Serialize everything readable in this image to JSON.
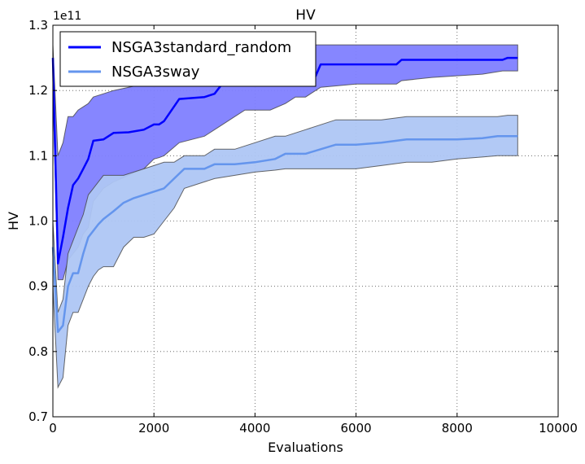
{
  "chart_data": {
    "type": "line",
    "title": "HV",
    "xlabel": "Evaluations",
    "ylabel": "HV",
    "y_offset_text": "1e11",
    "xlim": [
      0,
      10000
    ],
    "ylim": [
      0.7,
      1.3
    ],
    "grid": true,
    "legend_placement": "top-left",
    "x_ticks": [
      0,
      2000,
      4000,
      6000,
      8000,
      10000
    ],
    "x_tick_labels": [
      "0",
      "2000",
      "4000",
      "6000",
      "8000",
      "10000"
    ],
    "y_ticks": [
      0.7,
      0.8,
      0.9,
      1.0,
      1.1,
      1.2,
      1.3
    ],
    "y_tick_labels": [
      "0.7",
      "0.8",
      "0.9",
      "1.0",
      "1.1",
      "1.2",
      "1.3"
    ],
    "series": [
      {
        "name": "NSGA3standard_random",
        "color": "#0000ff",
        "band_color": "#7f7fff",
        "x": [
          0,
          100,
          200,
          300,
          400,
          500,
          600,
          700,
          800,
          1000,
          1200,
          1500,
          1800,
          2000,
          2100,
          2200,
          2500,
          3000,
          3200,
          3400,
          3600,
          3800,
          4000,
          4300,
          4600,
          4800,
          5000,
          5200,
          5300,
          6000,
          6800,
          6900,
          7500,
          8500,
          8900,
          9000,
          9200
        ],
        "mean": [
          1.25,
          0.935,
          0.975,
          1.02,
          1.055,
          1.065,
          1.08,
          1.095,
          1.123,
          1.125,
          1.135,
          1.136,
          1.14,
          1.148,
          1.148,
          1.153,
          1.187,
          1.19,
          1.195,
          1.215,
          1.215,
          1.215,
          1.215,
          1.215,
          1.215,
          1.215,
          1.215,
          1.222,
          1.24,
          1.24,
          1.24,
          1.247,
          1.247,
          1.247,
          1.247,
          1.25,
          1.25
        ],
        "upper": [
          1.27,
          1.1,
          1.12,
          1.16,
          1.16,
          1.17,
          1.175,
          1.18,
          1.19,
          1.195,
          1.2,
          1.205,
          1.21,
          1.22,
          1.22,
          1.22,
          1.23,
          1.24,
          1.25,
          1.25,
          1.25,
          1.25,
          1.25,
          1.25,
          1.26,
          1.27,
          1.27,
          1.27,
          1.27,
          1.27,
          1.27,
          1.27,
          1.27,
          1.27,
          1.27,
          1.27,
          1.27
        ],
        "lower": [
          1.2,
          0.91,
          0.91,
          0.94,
          0.95,
          0.96,
          0.98,
          0.99,
          1.03,
          1.05,
          1.06,
          1.07,
          1.08,
          1.095,
          1.097,
          1.1,
          1.12,
          1.13,
          1.14,
          1.15,
          1.16,
          1.17,
          1.17,
          1.17,
          1.18,
          1.19,
          1.19,
          1.2,
          1.205,
          1.21,
          1.21,
          1.215,
          1.22,
          1.225,
          1.23,
          1.23,
          1.23
        ]
      },
      {
        "name": "NSGA3sway",
        "color": "#6495ed",
        "band_color": "#aec6f4",
        "x": [
          0,
          100,
          200,
          300,
          400,
          500,
          600,
          700,
          800,
          900,
          1000,
          1200,
          1400,
          1600,
          1800,
          2000,
          2200,
          2400,
          2600,
          3000,
          3200,
          3600,
          4000,
          4400,
          4600,
          5000,
          5600,
          6000,
          6500,
          7000,
          7500,
          8000,
          8500,
          8800,
          9000,
          9200
        ],
        "mean": [
          0.96,
          0.83,
          0.84,
          0.9,
          0.92,
          0.92,
          0.95,
          0.975,
          0.985,
          0.995,
          1.003,
          1.015,
          1.028,
          1.035,
          1.04,
          1.045,
          1.05,
          1.065,
          1.08,
          1.08,
          1.087,
          1.087,
          1.09,
          1.095,
          1.103,
          1.103,
          1.117,
          1.117,
          1.12,
          1.125,
          1.125,
          1.125,
          1.127,
          1.13,
          1.13,
          1.13
        ],
        "upper": [
          1.0,
          0.86,
          0.88,
          0.95,
          0.97,
          0.99,
          1.01,
          1.04,
          1.05,
          1.06,
          1.07,
          1.07,
          1.07,
          1.075,
          1.08,
          1.085,
          1.09,
          1.09,
          1.1,
          1.1,
          1.11,
          1.11,
          1.12,
          1.13,
          1.13,
          1.14,
          1.155,
          1.155,
          1.155,
          1.16,
          1.16,
          1.16,
          1.16,
          1.16,
          1.162,
          1.162
        ],
        "lower": [
          0.9,
          0.745,
          0.76,
          0.84,
          0.86,
          0.86,
          0.88,
          0.9,
          0.915,
          0.925,
          0.93,
          0.93,
          0.96,
          0.975,
          0.975,
          0.98,
          1.0,
          1.02,
          1.05,
          1.06,
          1.065,
          1.07,
          1.075,
          1.078,
          1.08,
          1.08,
          1.08,
          1.08,
          1.085,
          1.09,
          1.09,
          1.095,
          1.098,
          1.1,
          1.1,
          1.1
        ]
      }
    ]
  }
}
